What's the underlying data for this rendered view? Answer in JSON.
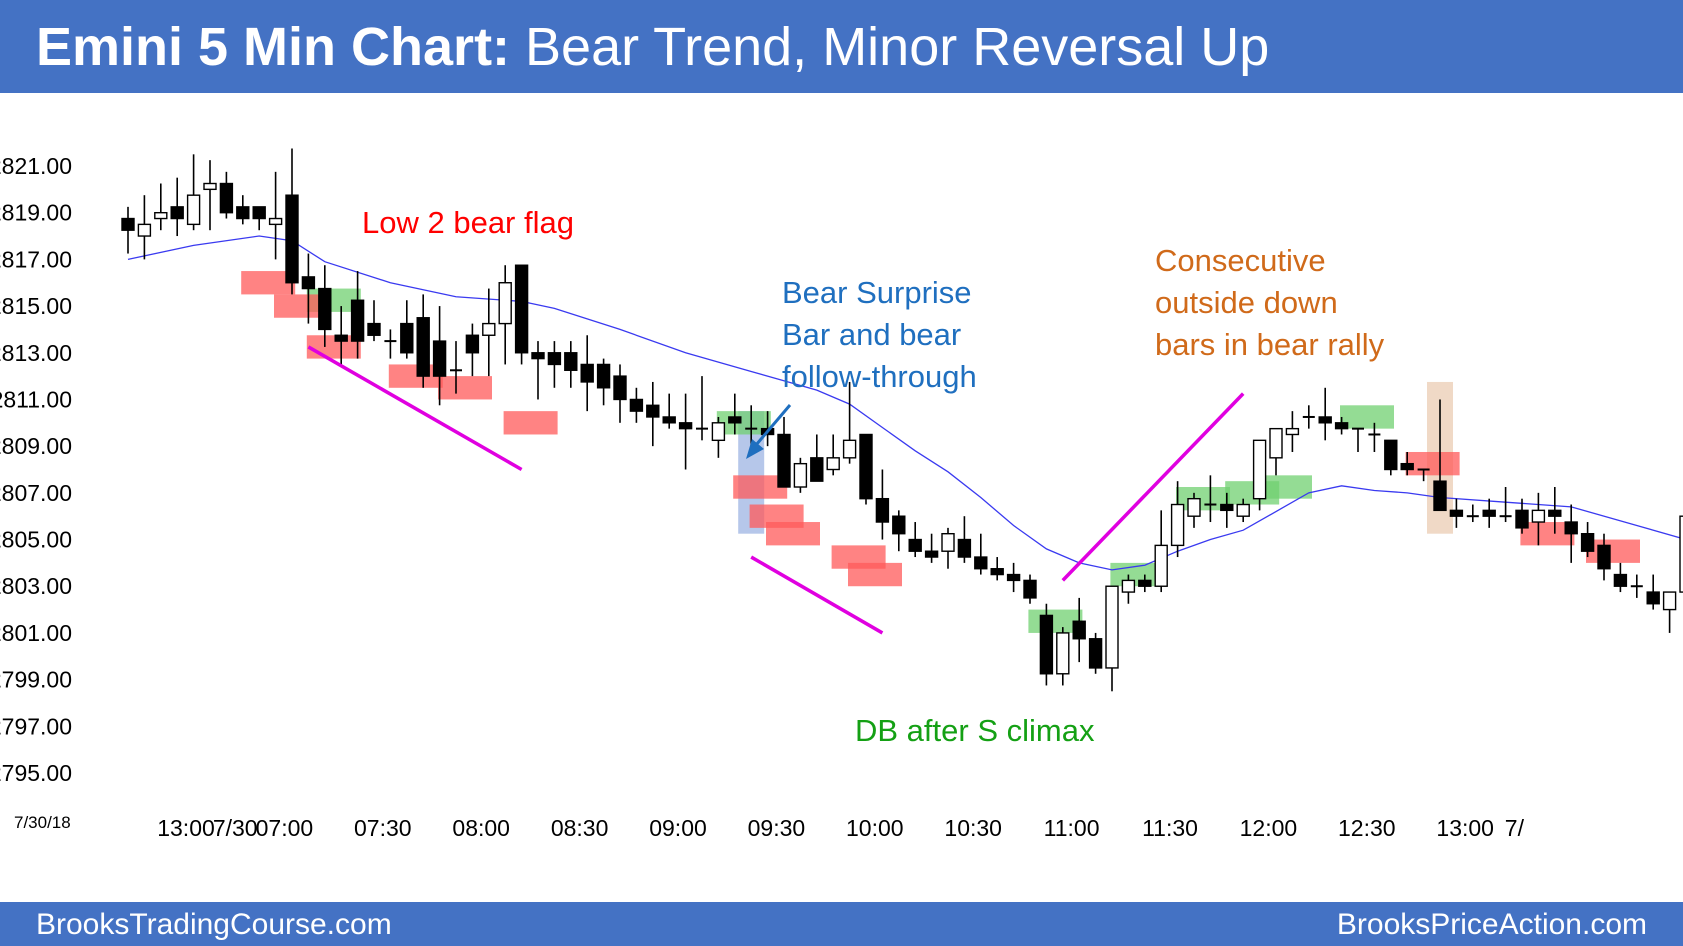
{
  "header": {
    "title_bold": "Emini 5 Min Chart:",
    "title_rest": " Bear Trend, Minor Reversal Up"
  },
  "footer": {
    "left": "BrooksTradingCourse.com",
    "right": "BrooksPriceAction.com"
  },
  "colors": {
    "header_bg": "#4472c4",
    "bull_highlight": "#70d070",
    "bear_highlight": "#ff5a5a",
    "ema_line": "#3a3af0",
    "trend_line": "#e000e0",
    "annotation_red": "#ff0000",
    "annotation_blue": "#1f6fbf",
    "annotation_green": "#14a014",
    "annotation_orange": "#d06a1a"
  },
  "chart_data": {
    "type": "candlestick",
    "date_label": "7/30/18",
    "y_ticks": [
      "2821.00",
      "2819.00",
      "2817.00",
      "2815.00",
      "2813.00",
      "2811.00",
      "2809.00",
      "2807.00",
      "2805.00",
      "2803.00",
      "2801.00",
      "2799.00",
      "2797.00",
      "2795.00"
    ],
    "ylim": [
      2794.0,
      2822.5
    ],
    "x_tick_labels": [
      {
        "label": "13:00",
        "bar": 0
      },
      {
        "label": "7/30",
        "bar": 3
      },
      {
        "label": "07:00",
        "bar": 6
      },
      {
        "label": "07:30",
        "bar": 12
      },
      {
        "label": "08:00",
        "bar": 18
      },
      {
        "label": "08:30",
        "bar": 24
      },
      {
        "label": "09:00",
        "bar": 30
      },
      {
        "label": "09:30",
        "bar": 36
      },
      {
        "label": "10:00",
        "bar": 42
      },
      {
        "label": "10:30",
        "bar": 48
      },
      {
        "label": "11:00",
        "bar": 54
      },
      {
        "label": "11:30",
        "bar": 60
      },
      {
        "label": "12:00",
        "bar": 66
      },
      {
        "label": "12:30",
        "bar": 72
      },
      {
        "label": "13:00",
        "bar": 78
      },
      {
        "label": "7/",
        "bar": 81
      }
    ],
    "bars": [
      [
        2818.75,
        2819.25,
        2817.25,
        2818.25
      ],
      [
        2818.0,
        2819.75,
        2817.0,
        2818.5
      ],
      [
        2818.75,
        2820.25,
        2818.25,
        2819.0
      ],
      [
        2819.25,
        2820.5,
        2818.0,
        2818.75
      ],
      [
        2818.5,
        2821.5,
        2818.25,
        2819.75
      ],
      [
        2820.0,
        2821.25,
        2818.25,
        2820.25
      ],
      [
        2820.25,
        2820.75,
        2818.75,
        2819.0
      ],
      [
        2819.25,
        2819.75,
        2818.5,
        2818.75
      ],
      [
        2819.25,
        2819.25,
        2818.25,
        2818.75
      ],
      [
        2818.5,
        2820.75,
        2817.0,
        2818.75
      ],
      [
        2819.75,
        2821.75,
        2815.5,
        2816.0
      ],
      [
        2816.25,
        2817.25,
        2814.25,
        2815.75
      ],
      [
        2815.75,
        2816.75,
        2813.25,
        2814.0
      ],
      [
        2813.75,
        2815.0,
        2812.5,
        2813.5
      ],
      [
        2815.25,
        2816.5,
        2812.75,
        2813.5
      ],
      [
        2814.25,
        2815.25,
        2813.5,
        2813.75
      ],
      [
        2813.5,
        2814.0,
        2812.75,
        2813.5
      ],
      [
        2814.25,
        2815.25,
        2812.75,
        2813.0
      ],
      [
        2814.5,
        2815.5,
        2811.5,
        2812.0
      ],
      [
        2813.5,
        2815.0,
        2810.75,
        2812.0
      ],
      [
        2812.25,
        2813.5,
        2811.25,
        2812.25
      ],
      [
        2813.75,
        2814.25,
        2812.0,
        2813.0
      ],
      [
        2813.75,
        2815.75,
        2812.0,
        2814.25
      ],
      [
        2814.25,
        2816.75,
        2812.5,
        2816.0
      ],
      [
        2816.75,
        2816.75,
        2812.5,
        2813.0
      ],
      [
        2813.0,
        2813.5,
        2811.0,
        2812.75
      ],
      [
        2813.0,
        2813.5,
        2811.5,
        2812.5
      ],
      [
        2813.0,
        2813.5,
        2811.5,
        2812.25
      ],
      [
        2812.5,
        2813.75,
        2810.5,
        2811.75
      ],
      [
        2812.5,
        2812.75,
        2810.75,
        2811.5
      ],
      [
        2812.0,
        2812.5,
        2810.0,
        2811.0
      ],
      [
        2811.0,
        2811.5,
        2810.0,
        2810.5
      ],
      [
        2810.75,
        2811.75,
        2809.0,
        2810.25
      ],
      [
        2810.25,
        2811.25,
        2809.75,
        2810.0
      ],
      [
        2810.0,
        2811.25,
        2808.0,
        2809.75
      ],
      [
        2809.75,
        2812.0,
        2809.25,
        2809.75
      ],
      [
        2809.25,
        2810.25,
        2808.5,
        2810.0
      ],
      [
        2810.25,
        2811.25,
        2809.5,
        2810.0
      ],
      [
        2809.75,
        2810.75,
        2809.0,
        2809.75
      ],
      [
        2809.75,
        2810.5,
        2809.0,
        2809.5
      ],
      [
        2809.5,
        2810.25,
        2807.25,
        2807.25
      ],
      [
        2807.25,
        2808.5,
        2807.0,
        2808.25
      ],
      [
        2808.5,
        2809.5,
        2807.75,
        2807.5
      ],
      [
        2808.0,
        2809.5,
        2807.75,
        2808.5
      ],
      [
        2808.5,
        2811.75,
        2808.25,
        2809.25
      ],
      [
        2809.5,
        2809.5,
        2806.5,
        2806.75
      ],
      [
        2806.75,
        2808.0,
        2805.0,
        2805.75
      ],
      [
        2806.0,
        2806.25,
        2804.5,
        2805.25
      ],
      [
        2805.0,
        2805.75,
        2804.25,
        2804.5
      ],
      [
        2804.5,
        2805.25,
        2804.0,
        2804.25
      ],
      [
        2804.5,
        2805.5,
        2803.75,
        2805.25
      ],
      [
        2805.0,
        2806.0,
        2804.0,
        2804.25
      ],
      [
        2804.25,
        2805.25,
        2803.5,
        2803.75
      ],
      [
        2803.75,
        2804.25,
        2803.25,
        2803.5
      ],
      [
        2803.5,
        2804.0,
        2802.75,
        2803.25
      ],
      [
        2803.25,
        2803.5,
        2802.25,
        2802.5
      ],
      [
        2801.75,
        2802.25,
        2798.75,
        2799.25
      ],
      [
        2799.25,
        2801.25,
        2798.75,
        2801.0
      ],
      [
        2801.5,
        2802.5,
        2799.75,
        2800.75
      ],
      [
        2800.75,
        2801.0,
        2799.25,
        2799.5
      ],
      [
        2799.5,
        2802.5,
        2798.5,
        2803.0
      ],
      [
        2802.75,
        2803.5,
        2802.25,
        2803.25
      ],
      [
        2803.25,
        2803.5,
        2802.75,
        2803.0
      ],
      [
        2803.0,
        2806.25,
        2802.75,
        2804.75
      ],
      [
        2804.75,
        2807.5,
        2804.25,
        2806.5
      ],
      [
        2806.0,
        2807.0,
        2805.5,
        2806.75
      ],
      [
        2806.5,
        2807.75,
        2805.75,
        2806.5
      ],
      [
        2806.5,
        2807.0,
        2805.5,
        2806.25
      ],
      [
        2806.0,
        2806.75,
        2805.75,
        2806.5
      ],
      [
        2806.75,
        2808.5,
        2806.25,
        2809.25
      ],
      [
        2808.5,
        2809.75,
        2807.75,
        2809.75
      ],
      [
        2809.5,
        2810.5,
        2808.75,
        2809.75
      ],
      [
        2810.25,
        2810.75,
        2809.75,
        2810.25
      ],
      [
        2810.25,
        2811.5,
        2809.25,
        2810.0
      ],
      [
        2810.0,
        2810.25,
        2809.5,
        2809.75
      ],
      [
        2809.75,
        2809.75,
        2808.75,
        2809.75
      ],
      [
        2809.5,
        2810.0,
        2808.75,
        2809.5
      ],
      [
        2809.25,
        2809.25,
        2807.75,
        2808.0
      ],
      [
        2808.25,
        2808.75,
        2807.75,
        2808.0
      ],
      [
        2808.0,
        2808.0,
        2807.5,
        2808.0
      ],
      [
        2807.5,
        2811.0,
        2807.0,
        2806.25
      ]
    ],
    "bars_tail": [
      [
        2806.25,
        2806.75,
        2805.5,
        2806.0
      ],
      [
        2806.0,
        2806.5,
        2805.75,
        2806.0
      ],
      [
        2806.25,
        2806.75,
        2805.5,
        2806.0
      ],
      [
        2806.0,
        2807.25,
        2805.75,
        2806.0
      ],
      [
        2806.25,
        2806.75,
        2805.25,
        2805.5
      ],
      [
        2805.75,
        2807.0,
        2804.75,
        2806.25
      ],
      [
        2806.25,
        2807.25,
        2805.25,
        2806.0
      ],
      [
        2805.75,
        2806.5,
        2804.0,
        2805.25
      ],
      [
        2805.25,
        2805.75,
        2804.25,
        2804.5
      ],
      [
        2804.75,
        2805.25,
        2803.25,
        2803.75
      ],
      [
        2803.5,
        2804.0,
        2802.75,
        2803.0
      ],
      [
        2803.0,
        2803.5,
        2802.5,
        2803.0
      ],
      [
        2802.75,
        2803.5,
        2802.0,
        2802.25
      ],
      [
        2802.0,
        2802.5,
        2801.0,
        2802.75
      ],
      [
        2802.75,
        2806.25,
        2801.0,
        2806.0
      ],
      [
        2806.0,
        2806.0,
        2803.0,
        2804.0
      ],
      [
        2803.75,
        2804.25,
        2802.5,
        2802.75
      ],
      [
        2802.5,
        2803.25,
        2802.0,
        2802.5
      ],
      [
        2802.25,
        2802.5,
        2800.5,
        2801.0
      ],
      [
        2801.0,
        2802.75,
        2800.75,
        2802.5
      ],
      [
        2802.25,
        2804.25,
        2801.5,
        2803.5
      ],
      [
        2803.5,
        2804.25,
        2802.75,
        2802.75
      ],
      [
        2802.75,
        2803.25,
        2802.25,
        2802.75
      ],
      [
        2802.5,
        2803.25,
        2801.75,
        2803.0
      ]
    ],
    "ema": [
      [
        0,
        2817.0
      ],
      [
        4,
        2817.6
      ],
      [
        8,
        2818.0
      ],
      [
        10,
        2817.8
      ],
      [
        12,
        2816.9
      ],
      [
        16,
        2816.0
      ],
      [
        20,
        2815.4
      ],
      [
        24,
        2815.2
      ],
      [
        26,
        2814.9
      ],
      [
        30,
        2814.0
      ],
      [
        34,
        2813.0
      ],
      [
        38,
        2812.2
      ],
      [
        42,
        2811.4
      ],
      [
        44,
        2810.8
      ],
      [
        46,
        2809.8
      ],
      [
        48,
        2808.8
      ],
      [
        50,
        2807.9
      ],
      [
        52,
        2806.8
      ],
      [
        54,
        2805.6
      ],
      [
        56,
        2804.6
      ],
      [
        58,
        2804.0
      ],
      [
        60,
        2803.7
      ],
      [
        62,
        2803.9
      ],
      [
        64,
        2804.5
      ],
      [
        66,
        2805.0
      ],
      [
        68,
        2805.4
      ],
      [
        70,
        2806.2
      ],
      [
        72,
        2807.0
      ],
      [
        74,
        2807.3
      ],
      [
        76,
        2807.1
      ],
      [
        78,
        2807.0
      ],
      [
        80,
        2806.8
      ],
      [
        84,
        2806.6
      ],
      [
        88,
        2806.4
      ],
      [
        92,
        2805.6
      ],
      [
        96,
        2804.8
      ],
      [
        100,
        2804.3
      ],
      [
        104,
        2803.9
      ]
    ],
    "bull_highlights": [
      [
        12,
        2815.75,
        2814.75
      ],
      [
        37,
        2810.5,
        2809.5
      ],
      [
        56,
        2802.0,
        2801.0
      ],
      [
        61,
        2804.0,
        2803.0
      ],
      [
        65,
        2807.25,
        2806.25
      ],
      [
        68,
        2807.5,
        2806.5
      ],
      [
        70,
        2807.75,
        2806.75
      ],
      [
        75,
        2810.75,
        2809.75
      ]
    ],
    "bear_highlights": [
      [
        8,
        2816.5,
        2815.5
      ],
      [
        10,
        2815.5,
        2814.5
      ],
      [
        12,
        2813.75,
        2812.75
      ],
      [
        17,
        2812.5,
        2811.5
      ],
      [
        20,
        2812.0,
        2811.0
      ],
      [
        24,
        2810.5,
        2809.5
      ],
      [
        38,
        2807.75,
        2806.75
      ],
      [
        39,
        2806.5,
        2805.5
      ],
      [
        40,
        2805.75,
        2804.75
      ],
      [
        44,
        2804.75,
        2803.75
      ],
      [
        45,
        2804.0,
        2803.0
      ],
      [
        79,
        2808.75,
        2807.75
      ],
      [
        86,
        2805.75,
        2804.75
      ],
      [
        90,
        2805.0,
        2804.0
      ]
    ],
    "special_boxes": [
      {
        "bar": 38,
        "top": 2810.5,
        "bottom": 2805.25,
        "color": "#8fa9df"
      },
      {
        "bar": 80,
        "top": 2811.75,
        "bottom": 2805.25,
        "color": "#e8c4a8"
      }
    ],
    "trend_lines": [
      [
        11,
        2813.25,
        24,
        2808.0
      ],
      [
        38,
        2804.25,
        46,
        2801.0
      ],
      [
        57,
        2803.25,
        68,
        2811.25
      ]
    ],
    "annotations": [
      {
        "text": "Low 2 bear flag",
        "color_key": "annotation_red"
      },
      {
        "text": "Bear Surprise",
        "color_key": "annotation_blue"
      },
      {
        "text": "Bar and bear",
        "color_key": "annotation_blue"
      },
      {
        "text": "follow-through",
        "color_key": "annotation_blue"
      },
      {
        "text": "Consecutive",
        "color_key": "annotation_orange"
      },
      {
        "text": "outside down",
        "color_key": "annotation_orange"
      },
      {
        "text": "bars in bear rally",
        "color_key": "annotation_orange"
      },
      {
        "text": "DB after S climax",
        "color_key": "annotation_green"
      }
    ]
  }
}
